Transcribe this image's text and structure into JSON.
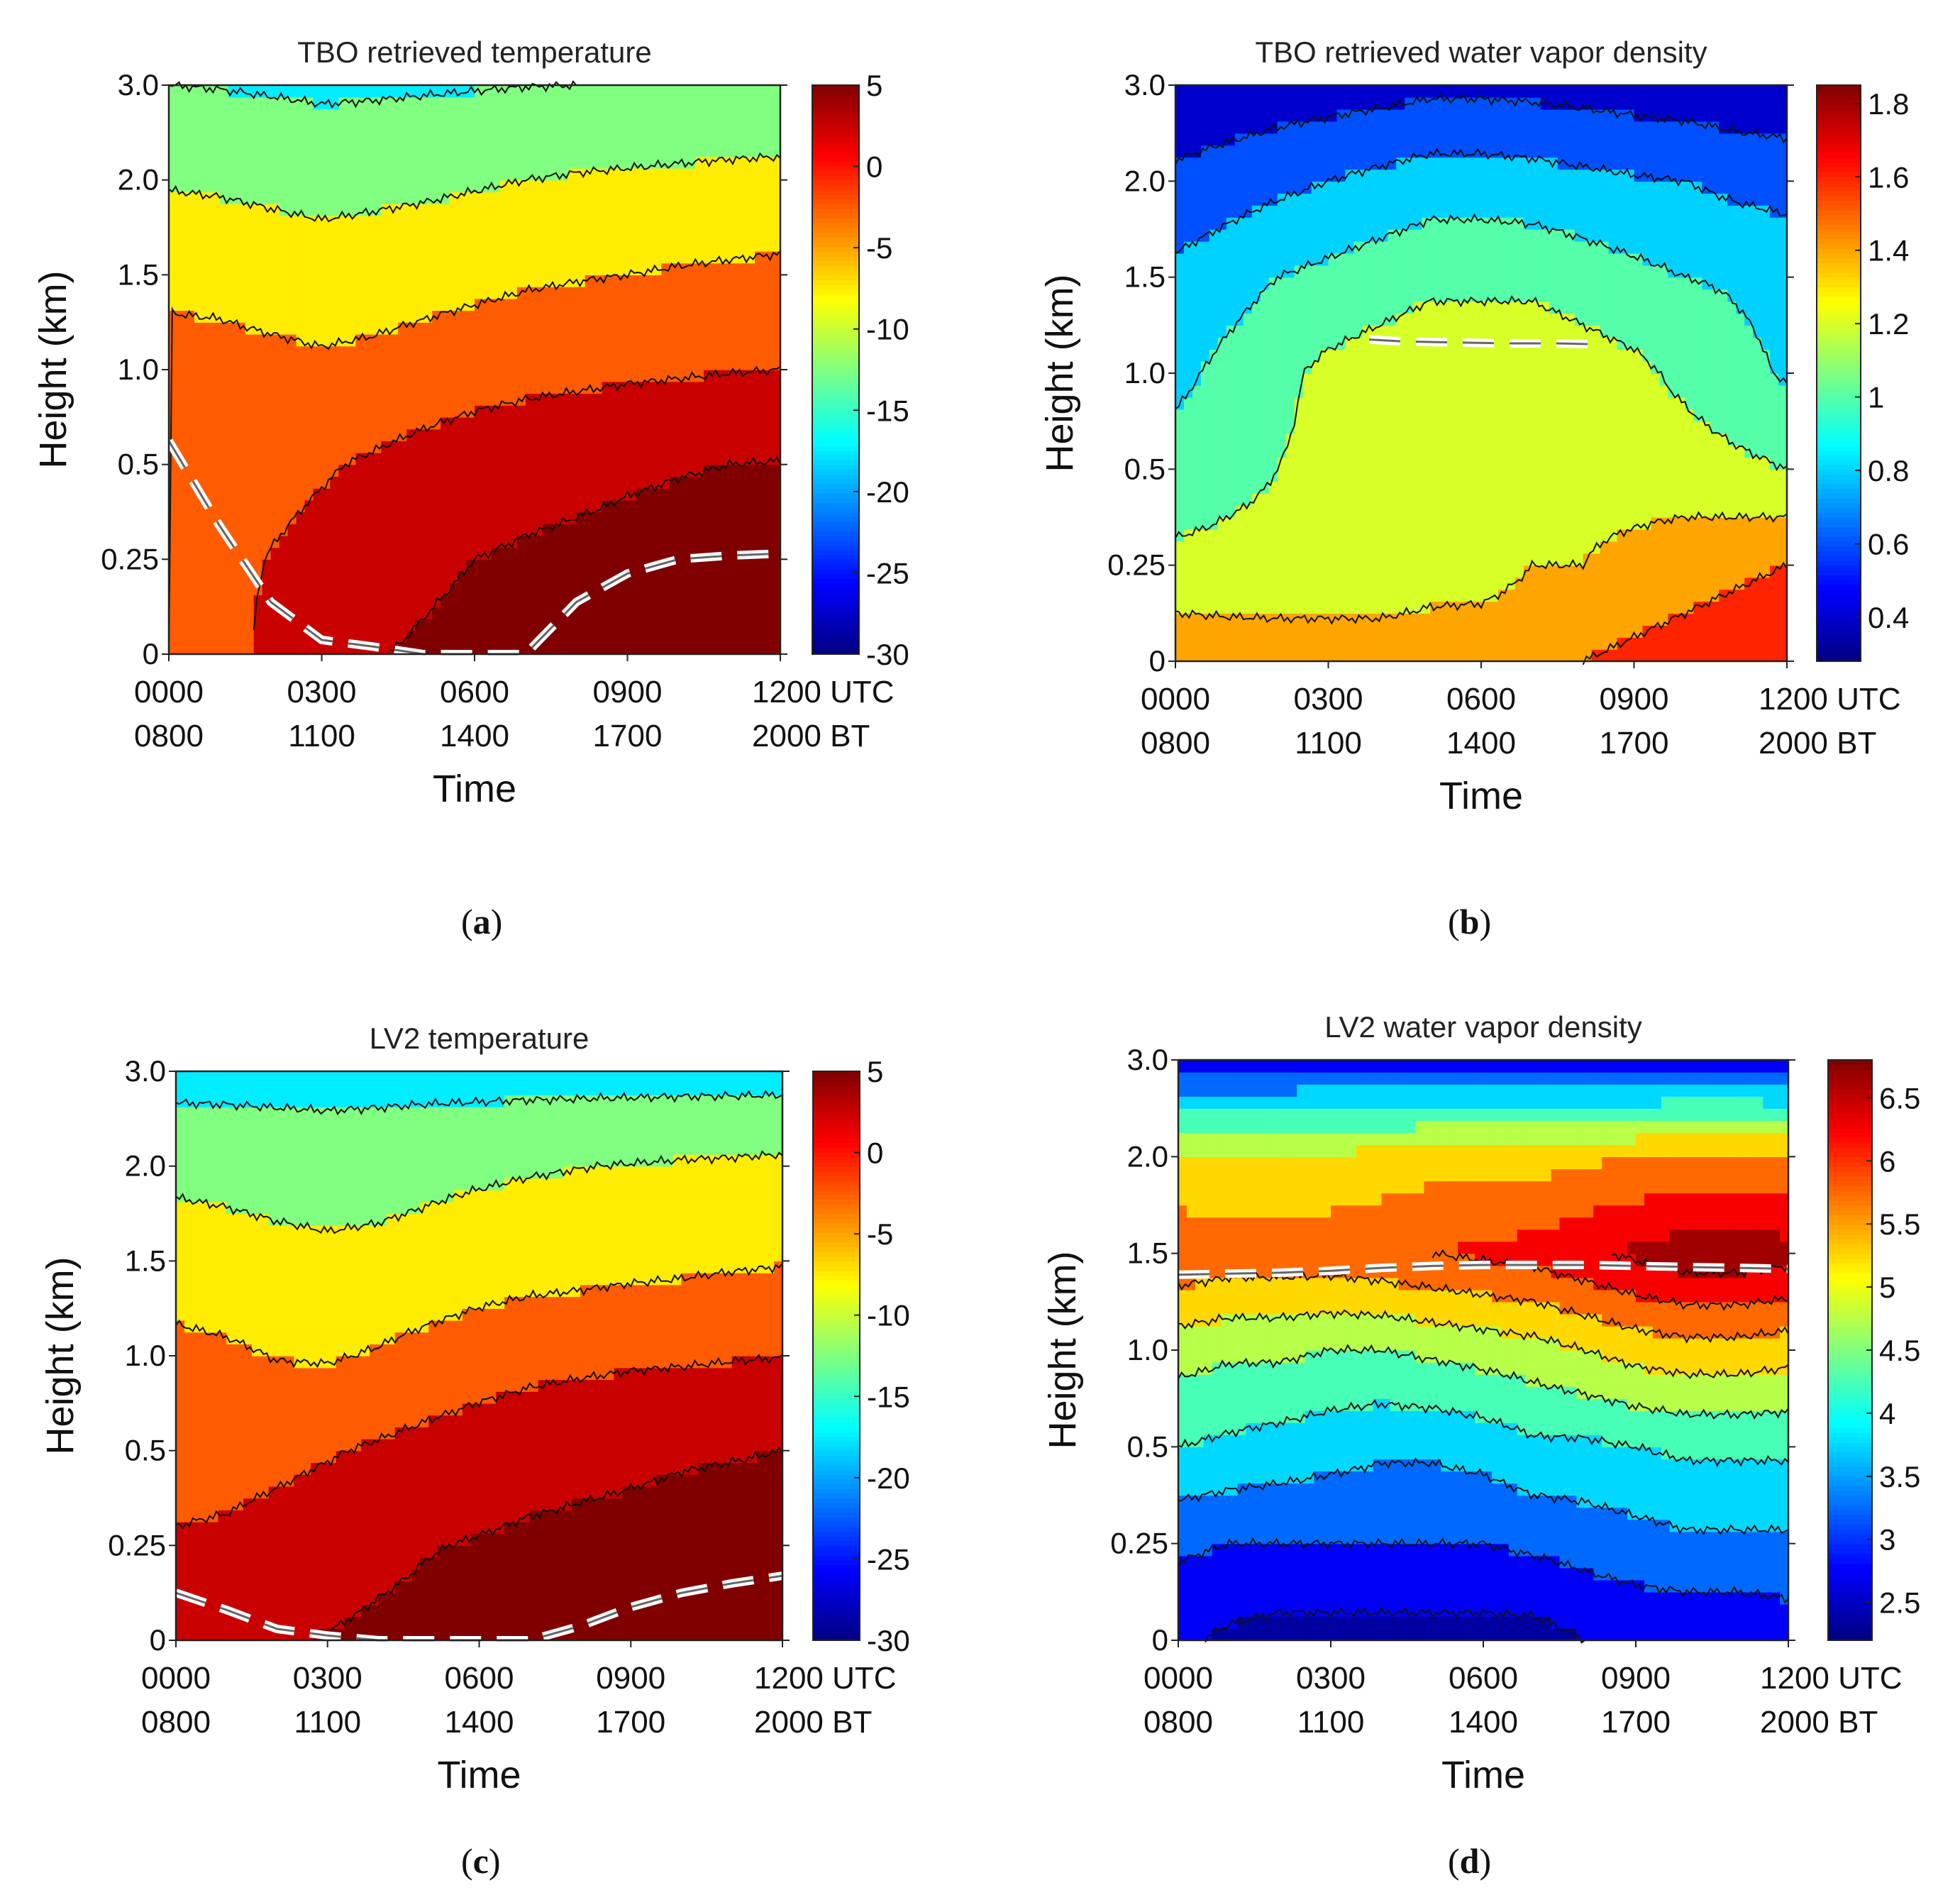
{
  "chart_data": [
    {
      "id": "a",
      "type": "heatmap",
      "title": "TBO retrieved temperature",
      "variable": "temperature",
      "xlabel": "Time",
      "ylabel": "Height (km)",
      "yticks": [
        "0",
        "0.25",
        "0.5",
        "1.0",
        "1.5",
        "2.0",
        "3.0"
      ],
      "xticks_utc": [
        "0000",
        "0300",
        "0600",
        "0900",
        "1200 UTC"
      ],
      "xticks_bt": [
        "0800",
        "1100",
        "1400",
        "1700",
        "2000 BT"
      ],
      "colorbar": {
        "min": -30,
        "max": 5,
        "ticks": [
          "5",
          "0",
          "-5",
          "-10",
          "-15",
          "-20",
          "-25",
          "-30"
        ]
      },
      "levels": [
        -25,
        -20,
        -15,
        -10,
        -5,
        0,
        5
      ],
      "caption": "a",
      "series": [
        {
          "name": "surface (0)",
          "height_label": "0",
          "values": [
            -5,
            -2,
            1.2,
            3.5,
            4.8,
            5.5,
            6.2,
            6.8,
            7.2,
            7.5,
            7.5,
            7.5,
            7.5
          ]
        },
        {
          "name": "0.25",
          "height_label": "0.25",
          "values": [
            -3,
            -1.5,
            0.2,
            1.5,
            3.0,
            4.2,
            5.0,
            5.5,
            5.8,
            6.0,
            6.2,
            6.3,
            6.5
          ]
        },
        {
          "name": "0.5",
          "height_label": "0.5",
          "values": [
            -3,
            -2.5,
            -1.5,
            -0.5,
            0.6,
            1.8,
            2.8,
            3.5,
            4.0,
            4.5,
            4.8,
            5.0,
            5.2
          ]
        },
        {
          "name": "1.0",
          "height_label": "1.0",
          "values": [
            -3.5,
            -3.5,
            -3.8,
            -4.2,
            -3.8,
            -3,
            -2.2,
            -1.6,
            -1.2,
            -0.8,
            -0.5,
            -0.2,
            0.0
          ]
        },
        {
          "name": "1.5",
          "height_label": "1.5",
          "values": [
            -6,
            -6.3,
            -7.0,
            -7.5,
            -7.2,
            -6.8,
            -6.3,
            -5.7,
            -5.3,
            -5.0,
            -4.6,
            -4.3,
            -4.0
          ]
        },
        {
          "name": "2.0",
          "height_label": "2.0",
          "values": [
            -10.5,
            -10.8,
            -11.3,
            -11.8,
            -11.4,
            -11.0,
            -10.5,
            -10.0,
            -9.6,
            -9.3,
            -9.0,
            -8.7,
            -8.5
          ]
        },
        {
          "name": "3.0",
          "height_label": "3.0",
          "values": [
            -15.0,
            -15.2,
            -15.5,
            -15.8,
            -15.7,
            -15.5,
            -15.3,
            -15.1,
            -15.0,
            -14.9,
            -14.8,
            -14.7,
            -14.6
          ]
        }
      ],
      "x_hours_utc": [
        0,
        1,
        2,
        3,
        4,
        5,
        6,
        7,
        8,
        9,
        10,
        11,
        12
      ],
      "boundary_line": {
        "name": "white dashed line",
        "x_hours_utc": [
          0,
          1,
          2,
          3,
          4,
          5,
          6,
          7,
          8,
          9,
          10,
          11,
          12
        ],
        "height_index": [
          2.25,
          1.35,
          0.55,
          0.15,
          0.08,
          0.0,
          -0.04,
          0.0,
          0.55,
          0.85,
          1.0,
          1.04,
          1.06
        ]
      }
    },
    {
      "id": "b",
      "type": "heatmap",
      "title": "TBO retrieved water vapor density",
      "variable": "water vapor density",
      "xlabel": "Time",
      "ylabel": "Height (km)",
      "yticks": [
        "0",
        "0.25",
        "0.5",
        "1.0",
        "1.5",
        "2.0",
        "3.0"
      ],
      "xticks_utc": [
        "0000",
        "0300",
        "0600",
        "0900",
        "1200 UTC"
      ],
      "xticks_bt": [
        "0800",
        "1100",
        "1400",
        "1700",
        "2000 BT"
      ],
      "colorbar": {
        "min": 0.28,
        "max": 1.85,
        "ticks": [
          "1.8",
          "1.6",
          "1.4",
          "1.2",
          "1",
          "0.8",
          "0.6",
          "0.4"
        ]
      },
      "levels": [
        0.3,
        0.5,
        0.7,
        0.9,
        1.1,
        1.3,
        1.5,
        1.7
      ],
      "caption": "b",
      "series": [
        {
          "name": "surface (0)",
          "height_label": "0",
          "values": [
            1.45,
            1.43,
            1.42,
            1.42,
            1.42,
            1.43,
            1.45,
            1.45,
            1.5,
            1.55,
            1.6,
            1.65,
            1.7
          ]
        },
        {
          "name": "0.25",
          "height_label": "0.25",
          "values": [
            1.15,
            1.15,
            1.15,
            1.15,
            1.15,
            1.2,
            1.2,
            1.3,
            1.3,
            1.35,
            1.4,
            1.45,
            1.5
          ]
        },
        {
          "name": "0.5",
          "height_label": "0.5",
          "values": [
            0.98,
            1.05,
            1.1,
            1.15,
            1.2,
            1.22,
            1.25,
            1.28,
            1.25,
            1.22,
            1.2,
            1.15,
            1.1
          ]
        },
        {
          "name": "1.0",
          "height_label": "1.0",
          "values": [
            0.85,
            0.95,
            1.05,
            1.15,
            1.2,
            1.25,
            1.25,
            1.25,
            1.2,
            1.15,
            1.05,
            0.95,
            0.88
          ]
        },
        {
          "name": "1.5",
          "height_label": "1.5",
          "values": [
            0.75,
            0.82,
            0.9,
            0.95,
            1.0,
            1.05,
            1.05,
            1.05,
            1.0,
            0.95,
            0.9,
            0.88,
            0.85
          ]
        },
        {
          "name": "2.0",
          "height_label": "2.0",
          "values": [
            0.55,
            0.6,
            0.65,
            0.7,
            0.75,
            0.8,
            0.8,
            0.78,
            0.75,
            0.72,
            0.7,
            0.65,
            0.62
          ]
        },
        {
          "name": "3.0",
          "height_label": "3.0",
          "values": [
            0.32,
            0.35,
            0.38,
            0.4,
            0.42,
            0.45,
            0.45,
            0.44,
            0.42,
            0.4,
            0.38,
            0.36,
            0.35
          ]
        }
      ],
      "x_hours_utc": [
        0,
        1,
        2,
        3,
        4,
        5,
        6,
        7,
        8,
        9,
        10,
        11,
        12
      ],
      "boundary_line": {
        "name": "white dashed line",
        "x_hours_utc": [
          3.8,
          4.5,
          5.5,
          6.5,
          7.5,
          8.3
        ],
        "height_index": [
          3.35,
          3.33,
          3.32,
          3.31,
          3.31,
          3.3
        ]
      }
    },
    {
      "id": "c",
      "type": "heatmap",
      "title": "LV2 temperature",
      "variable": "temperature",
      "xlabel": "Time",
      "ylabel": "Height (km)",
      "yticks": [
        "0",
        "0.25",
        "0.5",
        "1.0",
        "1.5",
        "2.0",
        "3.0"
      ],
      "xticks_utc": [
        "0000",
        "0300",
        "0600",
        "0900",
        "1200 UTC"
      ],
      "xticks_bt": [
        "0800",
        "1100",
        "1400",
        "1700",
        "2000 BT"
      ],
      "colorbar": {
        "min": -30,
        "max": 5,
        "ticks": [
          "5",
          "0",
          "-5",
          "-10",
          "-15",
          "-20",
          "-25",
          "-30"
        ]
      },
      "levels": [
        -25,
        -20,
        -15,
        -10,
        -5,
        0,
        5
      ],
      "caption": "c",
      "series": [
        {
          "name": "surface (0)",
          "height_label": "0",
          "values": [
            2.5,
            3.5,
            4.5,
            5.2,
            5.8,
            6.3,
            6.8,
            7.2,
            7.5,
            7.5,
            7.5,
            7.5,
            7.5
          ]
        },
        {
          "name": "0.25",
          "height_label": "0.25",
          "values": [
            0.5,
            1.0,
            2.0,
            3.0,
            4.0,
            4.8,
            5.3,
            5.8,
            6.0,
            6.2,
            6.4,
            6.5,
            6.6
          ]
        },
        {
          "name": "0.5",
          "height_label": "0.5",
          "values": [
            -2.0,
            -2.0,
            -1.3,
            -0.4,
            0.6,
            1.6,
            2.5,
            3.2,
            3.8,
            4.2,
            4.6,
            4.8,
            5.0
          ]
        },
        {
          "name": "1.0",
          "height_label": "1.0",
          "values": [
            -3.5,
            -4.2,
            -5.2,
            -5.4,
            -4.6,
            -3.4,
            -2.4,
            -1.6,
            -1.2,
            -0.8,
            -0.6,
            -0.3,
            -0.1
          ]
        },
        {
          "name": "1.5",
          "height_label": "1.5",
          "values": [
            -8.0,
            -8.3,
            -8.7,
            -9.0,
            -8.8,
            -8.3,
            -7.5,
            -7.0,
            -6.7,
            -6.3,
            -6.0,
            -5.6,
            -5.3
          ]
        },
        {
          "name": "2.0",
          "height_label": "2.0",
          "values": [
            -11.0,
            -11.3,
            -11.8,
            -12.2,
            -11.8,
            -11.2,
            -10.8,
            -10.4,
            -10.1,
            -9.8,
            -9.5,
            -9.3,
            -9.0
          ]
        },
        {
          "name": "3.0",
          "height_label": "3.0",
          "values": [
            -17.0,
            -17.0,
            -17.0,
            -17.0,
            -17.0,
            -17.0,
            -17.0,
            -17.0,
            -17.0,
            -17.0,
            -17.0,
            -17.0,
            -17.0
          ]
        }
      ],
      "x_hours_utc": [
        0,
        1,
        2,
        3,
        4,
        5,
        6,
        7,
        8,
        9,
        10,
        11,
        12
      ],
      "boundary_line": {
        "name": "white dashed line",
        "x_hours_utc": [
          0,
          1,
          2,
          3,
          4,
          5,
          6,
          7,
          8,
          9,
          10,
          11,
          12
        ],
        "height_index": [
          0.5,
          0.32,
          0.12,
          0.05,
          0.0,
          -0.05,
          -0.05,
          0.0,
          0.15,
          0.35,
          0.5,
          0.6,
          0.68
        ]
      }
    },
    {
      "id": "d",
      "type": "heatmap",
      "title": "LV2 water vapor density",
      "variable": "water vapor density",
      "xlabel": "Time",
      "ylabel": "Height (km)",
      "yticks": [
        "0",
        "0.25",
        "0.5",
        "1.0",
        "1.5",
        "2.0",
        "3.0"
      ],
      "xticks_utc": [
        "0000",
        "0300",
        "0600",
        "0900",
        "1200 UTC"
      ],
      "xticks_bt": [
        "0800",
        "1100",
        "1400",
        "1700",
        "2000 BT"
      ],
      "colorbar": {
        "min": 2.2,
        "max": 6.8,
        "ticks": [
          "6.5",
          "6",
          "5.5",
          "5",
          "4.5",
          "4",
          "3.5",
          "3",
          "2.5"
        ]
      },
      "levels": [
        2.5,
        3.0,
        3.5,
        4.0,
        4.5,
        5.0,
        5.5,
        6.0,
        6.5
      ],
      "caption": "d",
      "series": [
        {
          "name": "surface (0)",
          "height_label": "0",
          "values": [
            2.6,
            2.4,
            2.3,
            2.3,
            2.3,
            2.3,
            2.3,
            2.3,
            2.5,
            2.6,
            2.6,
            2.6,
            2.7
          ]
        },
        {
          "name": "0.25",
          "height_label": "0.25",
          "values": [
            3.1,
            3.0,
            3.0,
            3.0,
            3.0,
            3.0,
            3.0,
            3.1,
            3.2,
            3.3,
            3.4,
            3.4,
            3.4
          ]
        },
        {
          "name": "0.5",
          "height_label": "0.5",
          "values": [
            4.0,
            3.9,
            3.8,
            3.7,
            3.6,
            3.6,
            3.7,
            3.9,
            3.9,
            4.0,
            4.1,
            4.1,
            4.1
          ]
        },
        {
          "name": "1.0",
          "height_label": "1.0",
          "values": [
            4.7,
            4.6,
            4.6,
            4.5,
            4.5,
            4.6,
            4.7,
            4.8,
            5.0,
            5.2,
            5.3,
            5.3,
            5.2
          ]
        },
        {
          "name": "1.5",
          "height_label": "1.5",
          "values": [
            5.9,
            5.8,
            5.8,
            5.8,
            5.9,
            6.0,
            6.1,
            6.2,
            6.4,
            6.6,
            6.8,
            6.8,
            6.7
          ]
        },
        {
          "name": "2.0",
          "height_label": "2.0",
          "values": [
            5.0,
            5.0,
            5.0,
            5.1,
            5.2,
            5.3,
            5.3,
            5.3,
            5.4,
            5.5,
            5.6,
            5.6,
            5.5
          ]
        },
        {
          "name": "3.0",
          "height_label": "3.0",
          "values": [
            2.8,
            2.8,
            2.8,
            2.8,
            2.8,
            2.8,
            2.8,
            2.8,
            2.8,
            2.8,
            2.8,
            2.8,
            2.8
          ]
        }
      ],
      "x_hours_utc": [
        0,
        1,
        2,
        3,
        4,
        5,
        6,
        7,
        8,
        9,
        10,
        11,
        12
      ],
      "boundary_line": {
        "name": "white dashed line",
        "x_hours_utc": [
          0,
          1,
          2,
          3,
          4,
          5,
          6,
          7,
          8,
          9,
          10,
          11,
          12
        ],
        "height_index": [
          3.78,
          3.79,
          3.8,
          3.82,
          3.85,
          3.87,
          3.88,
          3.88,
          3.88,
          3.87,
          3.86,
          3.85,
          3.84
        ]
      }
    }
  ]
}
